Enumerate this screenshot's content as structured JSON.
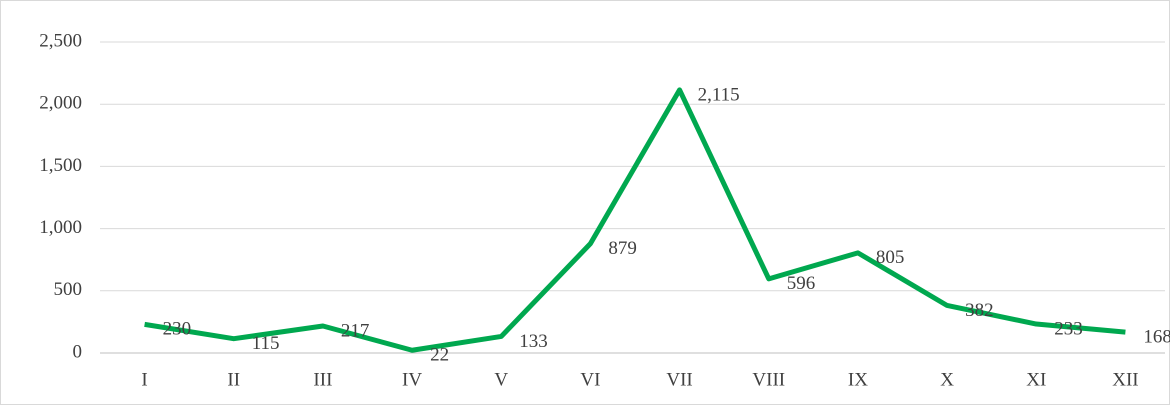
{
  "chart_data": {
    "type": "line",
    "categories": [
      "I",
      "II",
      "III",
      "IV",
      "V",
      "VI",
      "VII",
      "VIII",
      "IX",
      "X",
      "XI",
      "XII"
    ],
    "series": [
      {
        "color": "#00a84f",
        "values": [
          230,
          115,
          217,
          22,
          133,
          879,
          2115,
          596,
          805,
          382,
          233,
          168
        ],
        "value_labels": [
          "230",
          "115",
          "217",
          "22",
          "133",
          "879",
          "2,115",
          "596",
          "805",
          "382",
          "233",
          "168"
        ]
      }
    ],
    "ylim": [
      0,
      2500
    ],
    "yticks": [
      0,
      500,
      {
        "value": 1000,
        "label": "1,000"
      },
      {
        "value": 1500,
        "label": "1,500"
      },
      {
        "value": 2000,
        "label": "2,000"
      },
      {
        "value": 2500,
        "label": "2,500"
      }
    ],
    "grid": true
  }
}
